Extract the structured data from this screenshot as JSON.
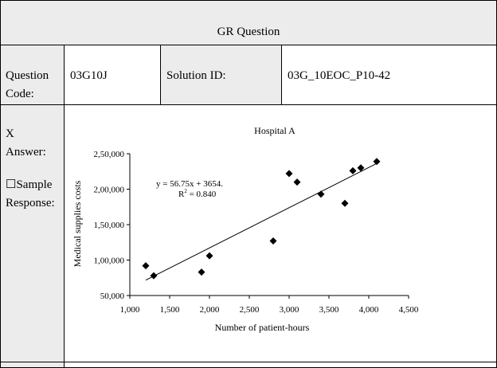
{
  "header": {
    "title": "GR Question"
  },
  "info_row": {
    "question_code_label": "Question Code:",
    "question_code_value": "03G10J",
    "solution_id_label": "Solution ID:",
    "solution_id_value": "03G_10EOC_P10-42"
  },
  "answer_col": {
    "answer_mark": "X",
    "answer_label": "Answer:",
    "sample_box": "☐",
    "sample_label": "Sample Response:"
  },
  "chart_data": {
    "type": "scatter",
    "title": "Hospital A",
    "xlabel": "Number of patient-hours",
    "ylabel": "Medical supplies costs",
    "xlim": [
      1000,
      4500
    ],
    "ylim": [
      50000,
      250000
    ],
    "x_ticks": [
      1000,
      1500,
      2000,
      2500,
      3000,
      3500,
      4000,
      4500
    ],
    "x_tick_labels": [
      "1,000",
      "1,500",
      "2,000",
      "2,500",
      "3,000",
      "3,500",
      "4,000",
      "4,500"
    ],
    "y_ticks": [
      50000,
      100000,
      150000,
      200000,
      250000
    ],
    "y_tick_labels": [
      "50,000",
      "1,00,000",
      "1,50,000",
      "2,00,000",
      "2,50,000"
    ],
    "points": [
      {
        "x": 1200,
        "y": 92000
      },
      {
        "x": 1300,
        "y": 78000
      },
      {
        "x": 1900,
        "y": 83000
      },
      {
        "x": 2000,
        "y": 106000
      },
      {
        "x": 2800,
        "y": 127000
      },
      {
        "x": 3000,
        "y": 222000
      },
      {
        "x": 3100,
        "y": 210000
      },
      {
        "x": 3400,
        "y": 193000
      },
      {
        "x": 3700,
        "y": 180000
      },
      {
        "x": 3800,
        "y": 226000
      },
      {
        "x": 3900,
        "y": 230000
      },
      {
        "x": 4100,
        "y": 239000
      }
    ],
    "trendline": {
      "x_start": 1200,
      "x_end": 4100,
      "slope": 56.75,
      "intercept": 3654
    },
    "equation_line1": "y = 56.75x + 3654.",
    "r2_prefix": "R",
    "r2_sup": "2",
    "r2_suffix": " = 0.840",
    "grid": false,
    "marker_color": "#000000"
  }
}
